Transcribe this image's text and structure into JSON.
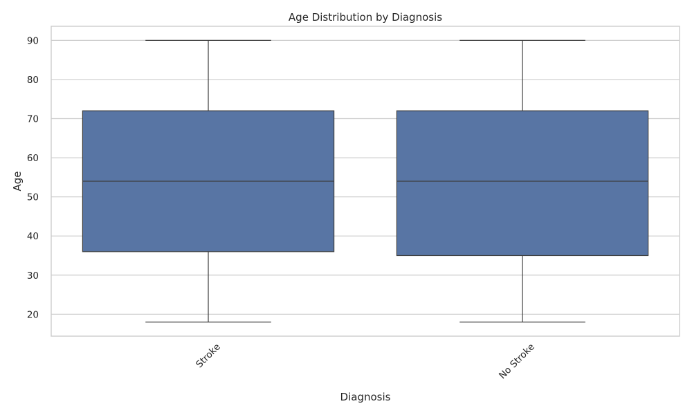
{
  "chart_data": {
    "type": "box",
    "title": "Age Distribution by Diagnosis",
    "xlabel": "Diagnosis",
    "ylabel": "Age",
    "ylim": [
      14.4,
      93.6
    ],
    "yticks": [
      20,
      30,
      40,
      50,
      60,
      70,
      80,
      90
    ],
    "grid": true,
    "box_color": "#5875a4",
    "line_color": "#3d3d3d",
    "categories": [
      "Stroke",
      "No Stroke"
    ],
    "boxes": [
      {
        "category": "Stroke",
        "min": 18,
        "q1": 36,
        "median": 54,
        "q3": 72,
        "max": 90
      },
      {
        "category": "No Stroke",
        "min": 18,
        "q1": 35,
        "median": 54,
        "q3": 72,
        "max": 90
      }
    ]
  }
}
